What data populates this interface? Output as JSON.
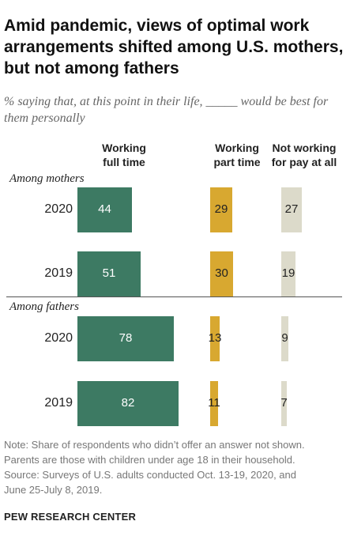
{
  "title": "Amid pandemic, views of optimal work arrangements shifted among U.S. mothers, but not among fathers",
  "subtitle": "% saying that, at this point in their life, _____ would be best for them personally",
  "columns": [
    "Working full time",
    "Working part time",
    "Not working for pay at all"
  ],
  "colors": {
    "full_time": "#3d7a63",
    "part_time": "#d8a830",
    "not_working": "#dcdaca"
  },
  "chart_data": {
    "type": "bar",
    "categories": [
      "Working full time",
      "Working part time",
      "Not working for pay at all"
    ],
    "groups": [
      {
        "name": "Among mothers",
        "rows": [
          {
            "year": "2020",
            "values": [
              44,
              29,
              27
            ]
          },
          {
            "year": "2019",
            "values": [
              51,
              30,
              19
            ]
          }
        ]
      },
      {
        "name": "Among fathers",
        "rows": [
          {
            "year": "2020",
            "values": [
              78,
              13,
              9
            ]
          },
          {
            "year": "2019",
            "values": [
              82,
              11,
              7
            ]
          }
        ]
      }
    ]
  },
  "notes": [
    "Note: Share of respondents who didn’t offer an answer not shown.",
    "Parents are those with children under age 18 in their household.",
    "Source: Surveys of U.S. adults conducted Oct. 13-19, 2020, and",
    "June 25-July 8, 2019."
  ],
  "source_brand": "PEW RESEARCH CENTER"
}
